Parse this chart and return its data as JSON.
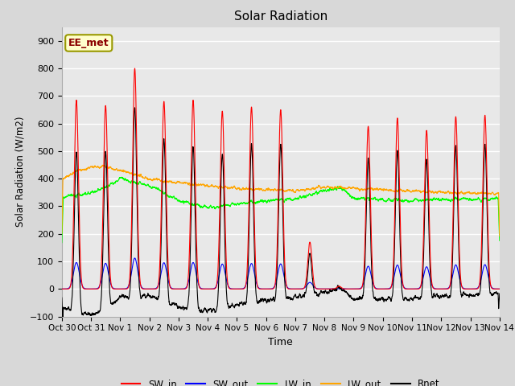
{
  "title": "Solar Radiation",
  "xlabel": "Time",
  "ylabel": "Solar Radiation (W/m2)",
  "ylim": [
    -100,
    950
  ],
  "yticks": [
    -100,
    0,
    100,
    200,
    300,
    400,
    500,
    600,
    700,
    800,
    900
  ],
  "background_color": "#d8d8d8",
  "plot_bg_color": "#e8e8e8",
  "grid_color": "white",
  "annotation_text": "EE_met",
  "annotation_box_color": "#ffffcc",
  "annotation_box_edge": "#999900",
  "colors": {
    "SW_in": "red",
    "SW_out": "blue",
    "LW_in": "lime",
    "LW_out": "orange",
    "Rnet": "black"
  },
  "days": [
    "Oct 30",
    "Oct 31",
    "Nov 1",
    "Nov 2",
    "Nov 3",
    "Nov 4",
    "Nov 5",
    "Nov 6",
    "Nov 7",
    "Nov 8",
    "Nov 9",
    "Nov 10",
    "Nov 11",
    "Nov 12",
    "Nov 13",
    "Nov 14"
  ]
}
